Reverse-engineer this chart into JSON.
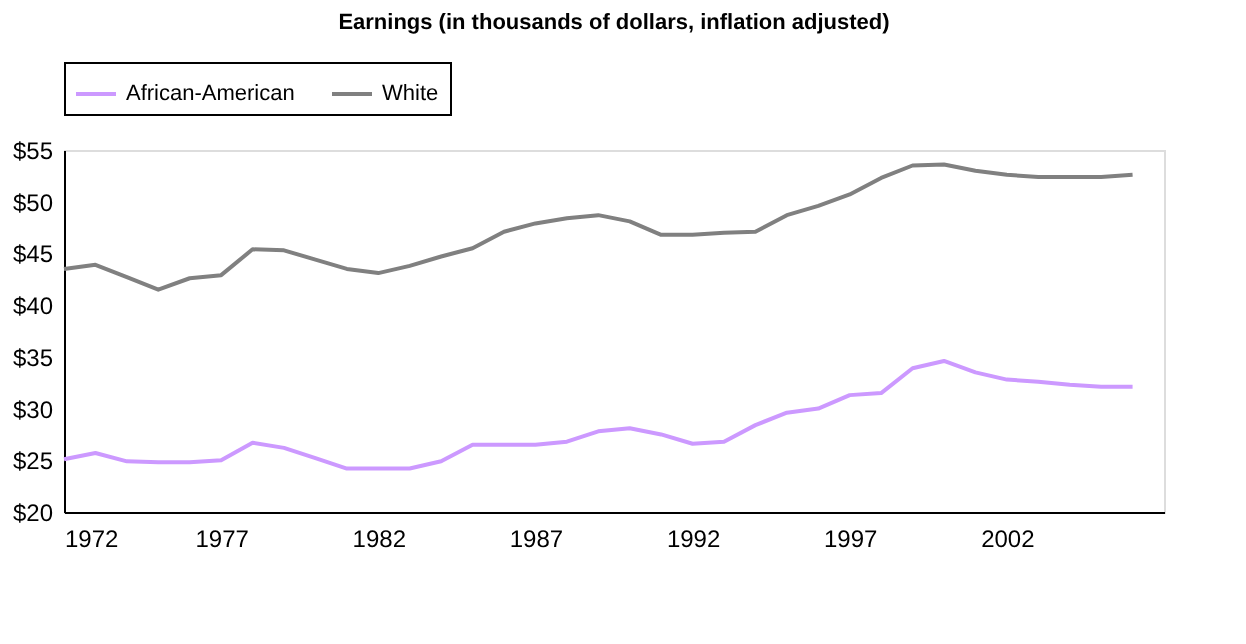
{
  "chart_data": {
    "type": "line",
    "title": "Earnings (in thousands of dollars, inflation adjusted)",
    "x": [
      1972,
      1973,
      1974,
      1975,
      1976,
      1977,
      1978,
      1979,
      1980,
      1981,
      1982,
      1983,
      1984,
      1985,
      1986,
      1987,
      1988,
      1989,
      1990,
      1991,
      1992,
      1993,
      1994,
      1995,
      1996,
      1997,
      1998,
      1999,
      2000,
      2001,
      2002,
      2003,
      2004,
      2005,
      2006
    ],
    "series": [
      {
        "name": "African-American",
        "color": "#cc99ff",
        "values": [
          25.1,
          25.7,
          24.9,
          24.8,
          24.8,
          25.0,
          26.7,
          26.2,
          25.2,
          24.2,
          24.2,
          24.2,
          24.9,
          26.5,
          26.5,
          26.5,
          26.8,
          27.8,
          28.1,
          27.5,
          26.6,
          26.8,
          28.4,
          29.6,
          30.0,
          31.3,
          31.5,
          33.9,
          34.6,
          33.5,
          32.8,
          32.6,
          32.3,
          32.1,
          32.1
        ]
      },
      {
        "name": "White",
        "color": "#808080",
        "values": [
          43.5,
          43.9,
          42.7,
          41.5,
          42.6,
          42.9,
          45.4,
          45.3,
          44.4,
          43.5,
          43.1,
          43.8,
          44.7,
          45.5,
          47.1,
          47.9,
          48.4,
          48.7,
          48.1,
          46.8,
          46.8,
          47.0,
          47.1,
          48.7,
          49.6,
          50.7,
          52.3,
          53.5,
          53.6,
          53.0,
          52.6,
          52.4,
          52.4,
          52.4,
          52.6
        ]
      }
    ],
    "xlim": [
      1972,
      2007
    ],
    "xticks": [
      1972,
      1977,
      1982,
      1987,
      1992,
      1997,
      2002
    ],
    "ylim": [
      20,
      55
    ],
    "yticks": [
      {
        "value": 20,
        "label": "$20"
      },
      {
        "value": 25,
        "label": "$25"
      },
      {
        "value": 30,
        "label": "$30"
      },
      {
        "value": 35,
        "label": "$35"
      },
      {
        "value": 40,
        "label": "$40"
      },
      {
        "value": 45,
        "label": "$45"
      },
      {
        "value": 50,
        "label": "$50"
      },
      {
        "value": 55,
        "label": "$55"
      }
    ],
    "grid": false,
    "legend": "top",
    "marker": "none",
    "line_style": "solid"
  }
}
